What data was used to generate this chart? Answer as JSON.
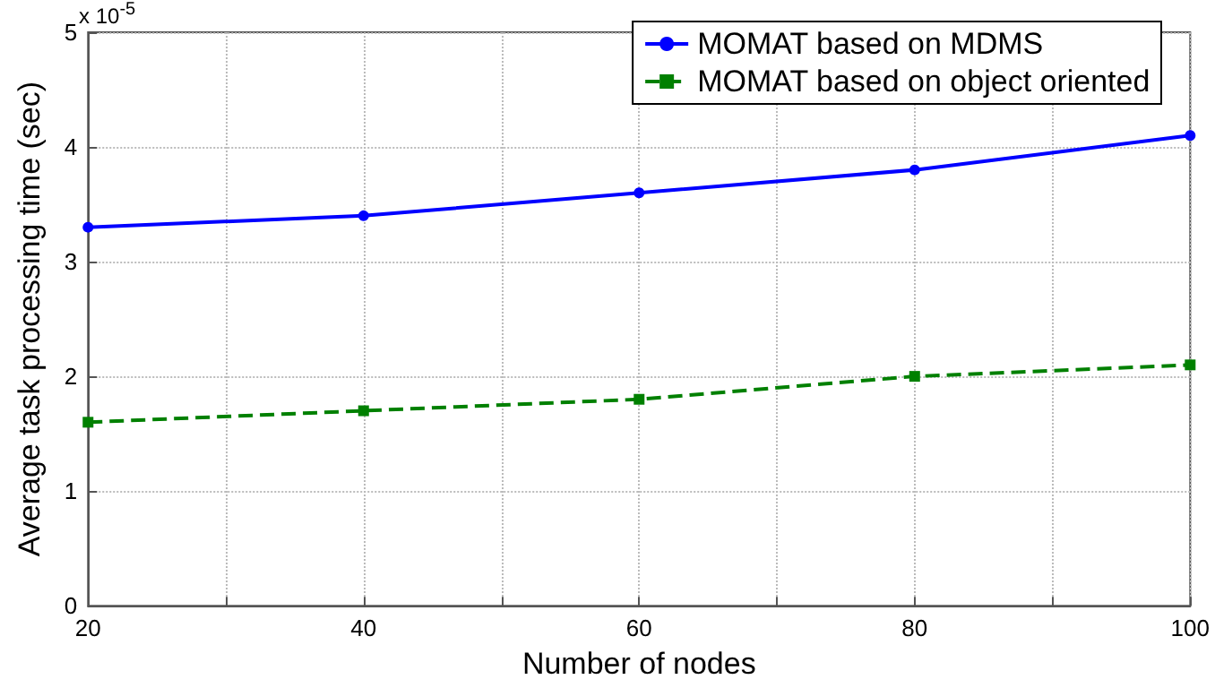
{
  "chart_data": {
    "type": "line",
    "xlabel": "Number of nodes",
    "ylabel": "Average task processing time (sec)",
    "annotations": [
      "x 10$^{-5}$"
    ],
    "x": [
      20,
      40,
      60,
      80,
      100
    ],
    "series": [
      {
        "name": "MOMAT based on MDMS",
        "color": "#0000ff",
        "values": [
          3.3,
          3.4,
          3.6,
          3.8,
          4.1
        ],
        "marker": "circle",
        "line_style": "solid"
      },
      {
        "name": "MOMAT based on object oriented",
        "color": "#008000",
        "values": [
          1.6,
          1.7,
          1.8,
          2.0,
          2.1
        ],
        "marker": "square",
        "line_style": "dashed"
      }
    ],
    "xlim": [
      20,
      100
    ],
    "xticks": [
      20,
      {
        "value": 30,
        "label": null
      },
      40,
      {
        "value": 50,
        "label": null
      },
      60,
      {
        "value": 70,
        "label": null
      },
      80,
      {
        "value": 90,
        "label": null
      },
      100
    ],
    "ylim": [
      0,
      5
    ],
    "yticks": [
      0,
      1,
      2,
      3,
      4,
      5
    ],
    "grid": true,
    "legend": "top right"
  }
}
